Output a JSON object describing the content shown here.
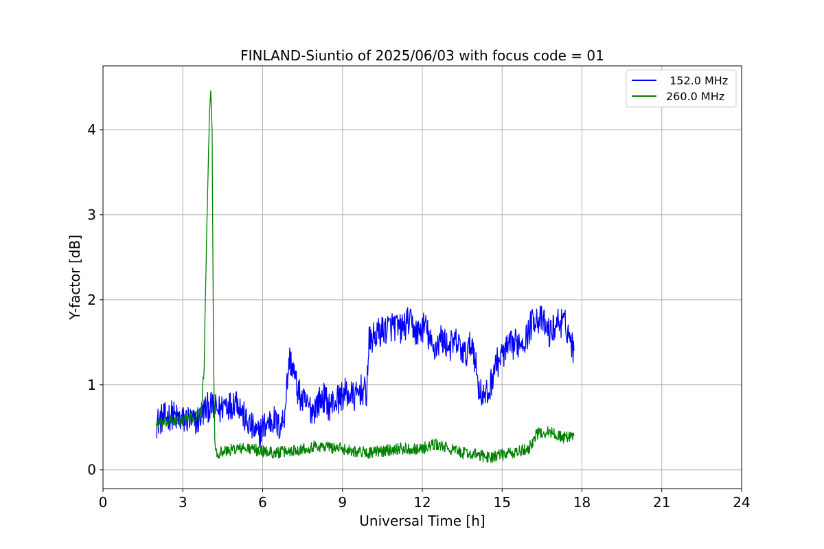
{
  "chart_data": {
    "type": "line",
    "title": "FINLAND-Siuntio of 2025/06/03 with focus code = 01",
    "xlabel": "Universal Time [h]",
    "ylabel": "Y-factor [dB]",
    "xlim": [
      0,
      24
    ],
    "ylim": [
      -0.22,
      4.75
    ],
    "xticks": [
      0,
      3,
      6,
      9,
      12,
      15,
      18,
      21,
      24
    ],
    "xtick_labels": [
      "0",
      "3",
      "6",
      "9",
      "12",
      "15",
      "18",
      "21",
      "24"
    ],
    "yticks": [
      0,
      1,
      2,
      3,
      4
    ],
    "ytick_labels": [
      "0",
      "1",
      "2",
      "3",
      "4"
    ],
    "grid": true,
    "legend_position": "top-right",
    "series": [
      {
        "name": " 152.0 MHz",
        "color": "#0000ff",
        "x": [
          2.0,
          2.2,
          2.4,
          2.6,
          2.8,
          3.0,
          3.2,
          3.4,
          3.6,
          3.8,
          4.0,
          4.2,
          4.4,
          4.6,
          4.8,
          5.0,
          5.2,
          5.4,
          5.6,
          5.8,
          6.0,
          6.2,
          6.4,
          6.6,
          6.8,
          7.0,
          7.1,
          7.3,
          7.5,
          7.7,
          7.9,
          8.1,
          8.3,
          8.5,
          8.7,
          8.9,
          9.1,
          9.3,
          9.5,
          9.7,
          9.9,
          10.0,
          10.3,
          10.6,
          10.9,
          11.2,
          11.5,
          11.8,
          12.1,
          12.4,
          12.7,
          13.0,
          13.3,
          13.6,
          13.9,
          14.1,
          14.3,
          14.5,
          14.7,
          15.0,
          15.3,
          15.6,
          15.9,
          16.2,
          16.5,
          16.8,
          17.1,
          17.4,
          17.7
        ],
        "values": [
          0.55,
          0.6,
          0.62,
          0.65,
          0.6,
          0.58,
          0.6,
          0.55,
          0.6,
          0.7,
          0.75,
          0.72,
          0.7,
          0.8,
          0.75,
          0.85,
          0.7,
          0.55,
          0.5,
          0.4,
          0.5,
          0.55,
          0.6,
          0.5,
          0.6,
          1.3,
          1.25,
          0.95,
          0.8,
          0.75,
          0.7,
          0.8,
          0.85,
          0.75,
          0.8,
          0.85,
          0.9,
          0.88,
          0.85,
          0.95,
          0.9,
          1.5,
          1.6,
          1.65,
          1.7,
          1.65,
          1.75,
          1.6,
          1.7,
          1.4,
          1.55,
          1.45,
          1.5,
          1.35,
          1.5,
          1.0,
          0.85,
          0.9,
          1.2,
          1.35,
          1.45,
          1.5,
          1.55,
          1.8,
          1.75,
          1.6,
          1.75,
          1.7,
          1.4
        ]
      },
      {
        "name": "260.0 MHz",
        "color": "#008000",
        "x": [
          2.0,
          2.3,
          2.6,
          2.9,
          3.2,
          3.5,
          3.7,
          3.8,
          3.9,
          4.0,
          4.05,
          4.1,
          4.15,
          4.2,
          4.3,
          4.6,
          5.0,
          5.5,
          6.0,
          6.5,
          7.0,
          7.5,
          8.0,
          8.5,
          9.0,
          9.5,
          10.0,
          10.5,
          11.0,
          11.5,
          12.0,
          12.5,
          13.0,
          13.5,
          14.0,
          14.5,
          15.0,
          15.5,
          16.0,
          16.3,
          16.7,
          17.0,
          17.3,
          17.7
        ],
        "values": [
          0.55,
          0.55,
          0.58,
          0.57,
          0.6,
          0.62,
          0.7,
          1.2,
          2.8,
          4.2,
          4.45,
          4.0,
          1.5,
          0.3,
          0.2,
          0.22,
          0.25,
          0.25,
          0.22,
          0.2,
          0.22,
          0.25,
          0.28,
          0.27,
          0.25,
          0.22,
          0.2,
          0.22,
          0.25,
          0.25,
          0.25,
          0.3,
          0.25,
          0.2,
          0.18,
          0.15,
          0.18,
          0.2,
          0.25,
          0.42,
          0.45,
          0.42,
          0.38,
          0.4
        ]
      }
    ]
  }
}
